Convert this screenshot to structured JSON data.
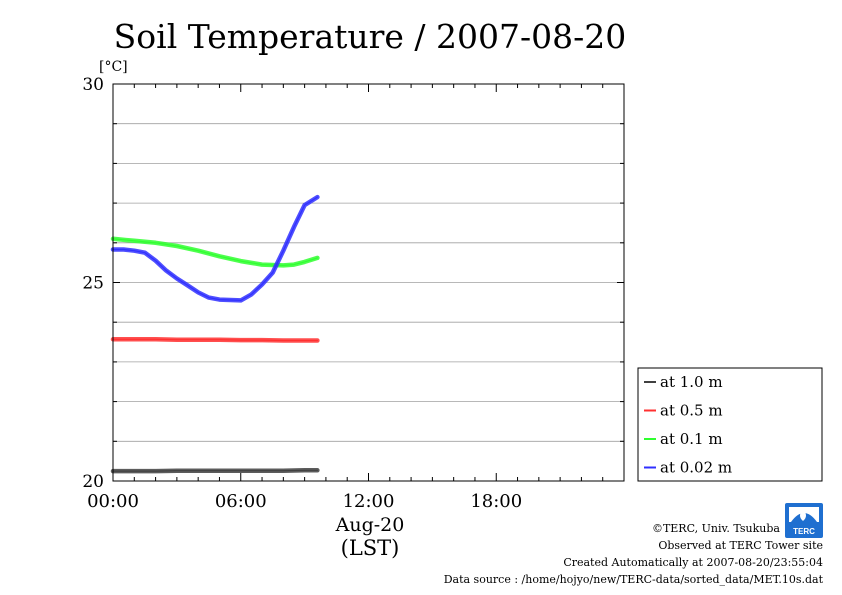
{
  "chart_data": {
    "type": "line",
    "title": "Soil Temperature / 2007-08-20",
    "unit_label": "[°C]",
    "xlabel_date": "Aug-20",
    "xlabel": "(LST)",
    "x_unit": "hours",
    "xlim": [
      0,
      24
    ],
    "x_tick_values": [
      0,
      6,
      12,
      18
    ],
    "x_tick_labels": [
      "00:00",
      "06:00",
      "12:00",
      "18:00"
    ],
    "ylim": [
      20,
      30
    ],
    "y_tick_values": [
      20,
      25,
      30
    ],
    "y_tick_labels": [
      "20",
      "25",
      "30"
    ],
    "y_minor_step": 1,
    "grid": true,
    "legend_position": "right",
    "series": [
      {
        "name": "at 1.0 m",
        "color": "#404040",
        "x": [
          0,
          1,
          2,
          3,
          4,
          5,
          6,
          7,
          8,
          9,
          9.6
        ],
        "values": [
          20.25,
          20.25,
          20.25,
          20.26,
          20.26,
          20.26,
          20.26,
          20.26,
          20.26,
          20.27,
          20.27
        ]
      },
      {
        "name": "at 0.5 m",
        "color": "#ff3030",
        "x": [
          0,
          1,
          2,
          3,
          4,
          5,
          6,
          7,
          8,
          9,
          9.6
        ],
        "values": [
          23.57,
          23.57,
          23.57,
          23.56,
          23.56,
          23.56,
          23.55,
          23.55,
          23.54,
          23.54,
          23.54
        ]
      },
      {
        "name": "at 0.1 m",
        "color": "#30ff30",
        "x": [
          0,
          1,
          2,
          3,
          4,
          5,
          6,
          7,
          8,
          8.5,
          9,
          9.6
        ],
        "values": [
          26.1,
          26.05,
          26.0,
          25.92,
          25.8,
          25.66,
          25.54,
          25.45,
          25.43,
          25.45,
          25.52,
          25.62
        ]
      },
      {
        "name": "at 0.02 m",
        "color": "#3030ff",
        "x": [
          0,
          0.5,
          1,
          1.5,
          2,
          2.5,
          3,
          3.5,
          4,
          4.5,
          5,
          5.5,
          6,
          6.5,
          7,
          7.5,
          8,
          8.5,
          9,
          9.3,
          9.6
        ],
        "values": [
          25.83,
          25.83,
          25.8,
          25.75,
          25.55,
          25.3,
          25.1,
          24.93,
          24.75,
          24.62,
          24.57,
          24.56,
          24.55,
          24.7,
          24.95,
          25.25,
          25.8,
          26.4,
          26.95,
          27.05,
          27.15
        ]
      }
    ]
  },
  "credits": {
    "copyright": "©TERC, Univ. Tsukuba",
    "site": "Observed at TERC Tower site",
    "created": "Created Automatically at 2007-08-20/23:55:04",
    "source": "Data source : /home/hojyo/new/TERC-data/sorted_data/MET.10s.dat",
    "logo_text": "TERC"
  }
}
